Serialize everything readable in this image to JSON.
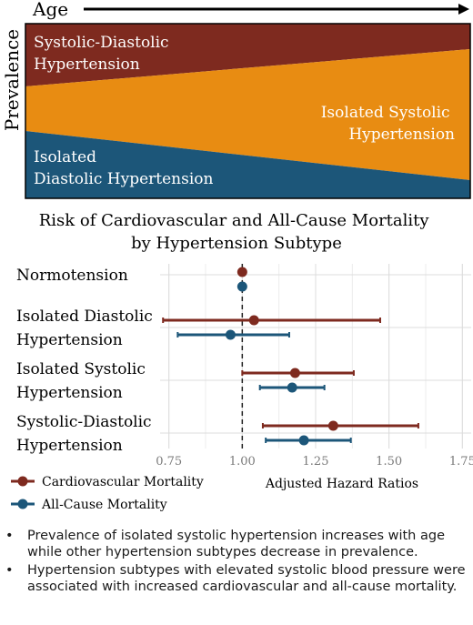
{
  "age_panel": {
    "x_label": "Age",
    "y_label": "Prevalence",
    "regions": [
      {
        "name": "Systolic-Diastolic Hypertension",
        "lines": [
          "Systolic-Diastolic",
          "Hypertension"
        ],
        "color": "#7e2a1f"
      },
      {
        "name": "Isolated Systolic Hypertension",
        "lines": [
          "Isolated Systolic",
          "Hypertension"
        ],
        "color": "#e88c12"
      },
      {
        "name": "Isolated Diastolic Hypertension",
        "lines": [
          "Isolated",
          "Diastolic Hypertension"
        ],
        "color": "#1c5679"
      }
    ],
    "trend": {
      "isolated_systolic": "increases with age",
      "other_subtypes": "decrease with age"
    }
  },
  "chart_data": {
    "type": "forest",
    "title": [
      "Risk of Cardiovascular and All-Cause Mortality",
      "by Hypertension Subtype"
    ],
    "xlabel": "Adjusted Hazard Ratios",
    "xlim": [
      0.72,
      1.78
    ],
    "xticks": [
      0.75,
      1.0,
      1.25,
      1.5,
      1.75
    ],
    "xtick_labels": [
      "0.75",
      "1.00",
      "1.25",
      "1.50",
      "1.75"
    ],
    "reference_line": 1.0,
    "grid": true,
    "categories": [
      [
        "Normotension"
      ],
      [
        "Isolated Diastolic",
        "Hypertension"
      ],
      [
        "Isolated Systolic",
        "Hypertension"
      ],
      [
        "Systolic-Diastolic",
        "Hypertension"
      ]
    ],
    "series": [
      {
        "name": "Cardiovascular Mortality",
        "color": "#7e2a1f",
        "estimates": [
          1.0,
          1.04,
          1.18,
          1.31
        ],
        "lower": [
          null,
          0.73,
          1.0,
          1.07
        ],
        "upper": [
          null,
          1.47,
          1.38,
          1.6
        ]
      },
      {
        "name": "All-Cause Mortality",
        "color": "#1c5679",
        "estimates": [
          1.0,
          0.96,
          1.17,
          1.21
        ],
        "lower": [
          null,
          0.78,
          1.06,
          1.08
        ],
        "upper": [
          null,
          1.16,
          1.28,
          1.37
        ]
      }
    ]
  },
  "bullets": [
    "Prevalence of isolated systolic hypertension increases with age while other hypertension subtypes decrease in prevalence.",
    "Hypertension subtypes with elevated systolic blood pressure were associated with increased cardiovascular and all-cause mortality."
  ]
}
